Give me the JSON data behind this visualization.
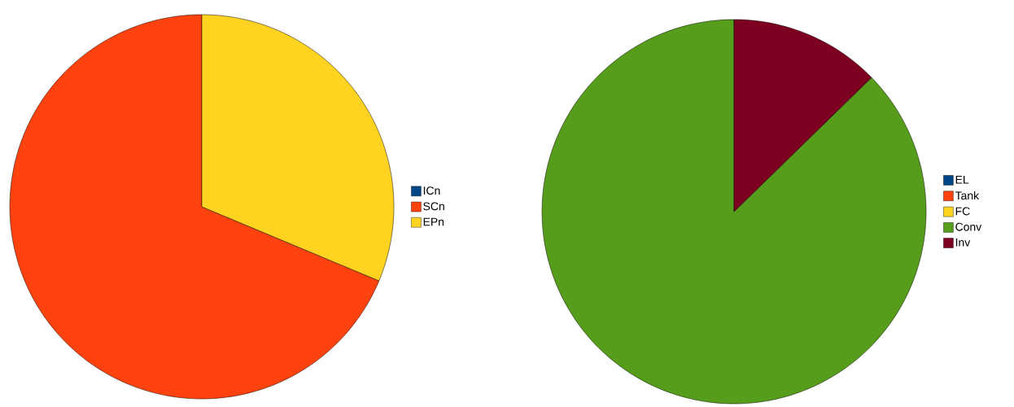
{
  "chart_data": [
    {
      "type": "pie",
      "categories": [
        "ICn",
        "SCn",
        "EPn"
      ],
      "values": [
        0,
        68.7,
        31.3
      ],
      "colors": [
        "#004586",
        "#ff420e",
        "#ffd320"
      ],
      "legend": "right"
    },
    {
      "type": "pie",
      "categories": [
        "EL",
        "Tank",
        "FC",
        "Conv",
        "Inv"
      ],
      "values": [
        0,
        0,
        0,
        87.3,
        12.7
      ],
      "colors": [
        "#004586",
        "#ff420e",
        "#ffd320",
        "#579d1c",
        "#7e0021"
      ],
      "legend": "right"
    }
  ]
}
